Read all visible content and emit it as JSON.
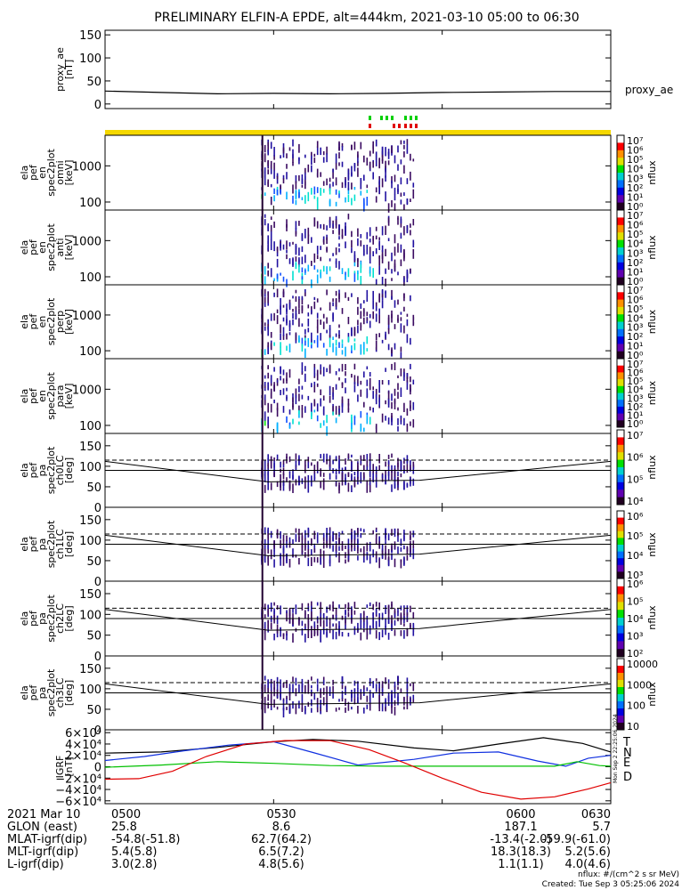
{
  "title": "PRELIMINARY ELFIN-A EPDE, alt=444km, 2021-03-10 05:00 to 06:30",
  "colors": {
    "axis": "#000000",
    "quality_bar": "#f5d800",
    "marker_green": "#00d000",
    "marker_red": "#e00000",
    "igrf_T": "#000000",
    "igrf_N": "#1030e0",
    "igrf_E": "#00c000",
    "igrf_D": "#e00000"
  },
  "chart_data": [
    {
      "type": "line",
      "name": "proxy_ae",
      "ylabel_lines": [
        "proxy_ae",
        "[nT]"
      ],
      "yticks": [
        "150",
        "100",
        "50",
        "0"
      ],
      "ylim": [
        -10,
        160
      ],
      "legend": "proxy_ae",
      "series": [
        {
          "name": "proxy_ae",
          "x": [
            0,
            10,
            20,
            30,
            40,
            50,
            60,
            70,
            80,
            90
          ],
          "y": [
            28,
            25,
            22,
            23,
            22,
            23,
            25,
            26,
            27,
            27
          ]
        }
      ]
    },
    {
      "type": "heatmap",
      "name": "omni",
      "ylabel_lines": [
        "ela",
        "pef",
        "en",
        "spec2plot",
        "omni",
        "[keV]"
      ],
      "yscale": "log",
      "yticks": [
        "1000",
        "100"
      ],
      "ylim": [
        60,
        7000
      ],
      "colorbar": {
        "label": "nflux",
        "ticks": [
          "10⁷",
          "10⁶",
          "10⁵",
          "10⁴",
          "10³",
          "10²",
          "10¹",
          "10⁰"
        ]
      }
    },
    {
      "type": "heatmap",
      "name": "anti",
      "ylabel_lines": [
        "ela",
        "pef",
        "en",
        "spec2plot",
        "anti",
        "[keV]"
      ],
      "yscale": "log",
      "yticks": [
        "1000",
        "100"
      ],
      "ylim": [
        60,
        7000
      ],
      "colorbar": {
        "label": "nflux",
        "ticks": [
          "10⁷",
          "10⁶",
          "10⁵",
          "10⁴",
          "10³",
          "10²",
          "10¹",
          "10⁰"
        ]
      }
    },
    {
      "type": "heatmap",
      "name": "perp",
      "ylabel_lines": [
        "ela",
        "pef",
        "en",
        "spec2plot",
        "perp",
        "[keV]"
      ],
      "yscale": "log",
      "yticks": [
        "1000",
        "100"
      ],
      "ylim": [
        60,
        7000
      ],
      "colorbar": {
        "label": "nflux",
        "ticks": [
          "10⁷",
          "10⁶",
          "10⁵",
          "10⁴",
          "10³",
          "10²",
          "10¹",
          "10⁰"
        ]
      }
    },
    {
      "type": "heatmap",
      "name": "para",
      "ylabel_lines": [
        "ela",
        "pef",
        "en",
        "spec2plot",
        "para",
        "[keV]"
      ],
      "yscale": "log",
      "yticks": [
        "1000",
        "100"
      ],
      "ylim": [
        60,
        7000
      ],
      "colorbar": {
        "label": "nflux",
        "ticks": [
          "10⁷",
          "10⁶",
          "10⁵",
          "10⁴",
          "10³",
          "10²",
          "10¹",
          "10⁰"
        ]
      }
    },
    {
      "type": "heatmap",
      "name": "ch0LC",
      "ylabel_lines": [
        "ela",
        "pef",
        "pa",
        "spec2plot",
        "ch0LC",
        "[deg]"
      ],
      "yticks": [
        "150",
        "100",
        "50",
        "0"
      ],
      "ylim": [
        0,
        180
      ],
      "colorbar": {
        "label": "nflux",
        "ticks": [
          "10⁷",
          "10⁶",
          "10⁵",
          "10⁴"
        ]
      }
    },
    {
      "type": "heatmap",
      "name": "ch1LC",
      "ylabel_lines": [
        "ela",
        "pef",
        "pa",
        "spec2plot",
        "ch1LC",
        "[deg]"
      ],
      "yticks": [
        "150",
        "100",
        "50",
        "0"
      ],
      "ylim": [
        0,
        180
      ],
      "colorbar": {
        "label": "nflux",
        "ticks": [
          "10⁶",
          "10⁵",
          "10⁴",
          "10³"
        ]
      }
    },
    {
      "type": "heatmap",
      "name": "ch2LC",
      "ylabel_lines": [
        "ela",
        "pef",
        "pa",
        "spec2plot",
        "ch2LC",
        "[deg]"
      ],
      "yticks": [
        "150",
        "100",
        "50",
        "0"
      ],
      "ylim": [
        0,
        180
      ],
      "colorbar": {
        "label": "nflux",
        "ticks": [
          "10⁶",
          "10⁵",
          "10⁴",
          "10³",
          "10²"
        ]
      }
    },
    {
      "type": "heatmap",
      "name": "ch3LC",
      "ylabel_lines": [
        "ela",
        "pef",
        "pa",
        "spec2plot",
        "ch3LC",
        "[deg]"
      ],
      "yticks": [
        "150",
        "100",
        "50",
        "0"
      ],
      "ylim": [
        0,
        180
      ],
      "colorbar": {
        "label": "nflux",
        "ticks": [
          "10000",
          "1000",
          "100",
          "10"
        ]
      }
    },
    {
      "type": "line",
      "name": "IGRF",
      "ylabel_lines": [
        "IGRF",
        "[nT]"
      ],
      "yticks": [
        "6×10⁴",
        "4×10⁴",
        "2×10⁴",
        "0",
        "−2×10⁴",
        "−4×10⁴",
        "−6×10⁴"
      ],
      "ylim": [
        -65000,
        65000
      ],
      "series": [
        {
          "name": "T",
          "x": [
            0,
            10,
            20,
            30,
            37,
            45,
            55,
            62,
            70,
            78,
            85,
            90
          ],
          "y": [
            24000,
            26000,
            34000,
            44000,
            48000,
            45000,
            33000,
            28000,
            40000,
            51000,
            41000,
            26000
          ]
        },
        {
          "name": "N",
          "x": [
            0,
            7,
            14,
            22,
            30,
            37,
            45,
            55,
            62,
            70,
            77,
            82,
            86,
            90
          ],
          "y": [
            11000,
            18000,
            28000,
            38000,
            44000,
            25000,
            3000,
            13000,
            24000,
            26000,
            10000,
            1000,
            15000,
            20000
          ]
        },
        {
          "name": "E",
          "x": [
            0,
            10,
            20,
            30,
            40,
            50,
            60,
            70,
            80,
            84,
            88,
            90
          ],
          "y": [
            -1000,
            3000,
            9000,
            6000,
            2000,
            1000,
            1000,
            1000,
            1000,
            9000,
            2000,
            1000
          ]
        },
        {
          "name": "D",
          "x": [
            0,
            6,
            12,
            18,
            25,
            32,
            40,
            47,
            53,
            60,
            67,
            74,
            80,
            86,
            90
          ],
          "y": [
            -22000,
            -21000,
            -8000,
            18000,
            40000,
            46000,
            46000,
            30000,
            8000,
            -20000,
            -45000,
            -57000,
            -53000,
            -39000,
            -28000
          ]
        }
      ]
    }
  ],
  "spectrogram_images": [
    "Banded colour spectrogram streaks (blue to purple) near 05:28 through 05:55 in each panel"
  ],
  "orbit": {
    "time_label": "2021 Mar 10",
    "times": [
      "0500",
      "0530",
      "0600",
      "0630"
    ],
    "rows": [
      {
        "label": "GLON (east)",
        "values": [
          "25.8",
          "8.6",
          "187.1",
          "5.7"
        ]
      },
      {
        "label": "MLAT-igrf(dip)",
        "values": [
          "-54.8(-51.8)",
          "62.7(64.2)",
          "-13.4(-2.0)",
          "-59.9(-61.0)"
        ]
      },
      {
        "label": "MLT-igrf(dip)",
        "values": [
          "5.4(5.8)",
          "6.5(7.2)",
          "18.3(18.3)",
          "5.2(5.6)"
        ]
      },
      {
        "label": "L-igrf(dip)",
        "values": [
          "3.0(2.8)",
          "4.8(5.6)",
          "1.1(1.1)",
          "4.0(4.6)"
        ]
      }
    ]
  },
  "footer": {
    "units": "nflux: #/(cm^2 s sr MeV)",
    "created": "Created: Tue Sep  3 05:25:06 2024",
    "side_stamp": "Mon Sep  2 22:25:06 2024"
  }
}
